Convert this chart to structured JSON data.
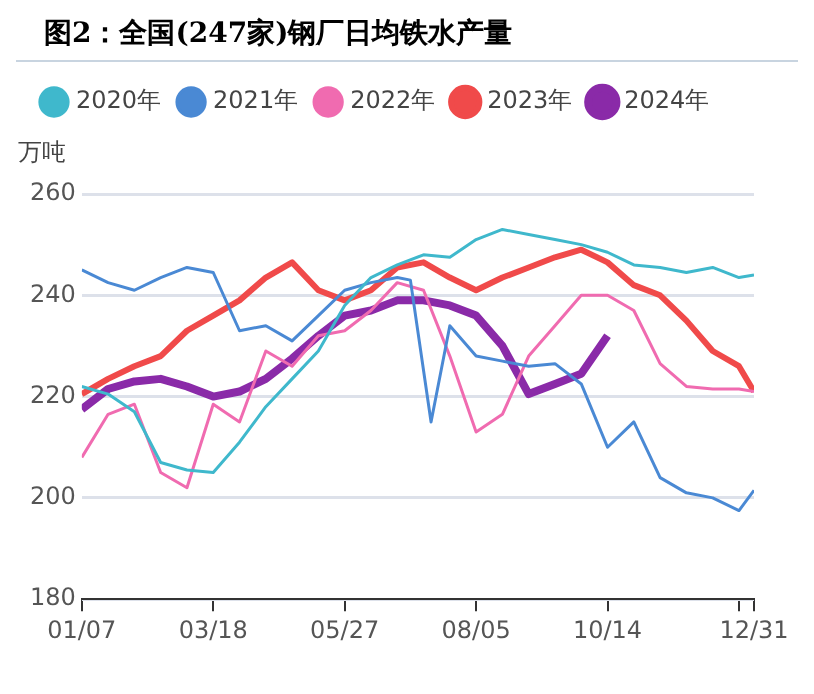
{
  "chart_data": {
    "type": "line",
    "title": "图2：全国(247家)钢厂日均铁水产量",
    "ylabel": "万吨",
    "x": [
      "--01-07",
      "--01-21",
      "--02-04",
      "--02-18",
      "--03-04",
      "--03-18",
      "--04-01",
      "--04-15",
      "--04-29",
      "--05-13",
      "--05-27",
      "--06-10",
      "--06-24",
      "--07-08",
      "--07-22",
      "--08-05",
      "--08-19",
      "--09-02",
      "--09-16",
      "--09-30",
      "--10-14",
      "--10-28",
      "--11-11",
      "--11-25",
      "--12-09",
      "--12-23",
      "--12-31"
    ],
    "series": [
      {
        "name": "2020年",
        "color": "#3fb8cc",
        "values": [
          222,
          220.5,
          217,
          207,
          205.5,
          205,
          211,
          218,
          223.5,
          229,
          238,
          243.5,
          246,
          248,
          247.5,
          251,
          253,
          252,
          251,
          250,
          248.5,
          246,
          245.5,
          244.5,
          245.5,
          243.5,
          244
        ]
      },
      {
        "name": "2021年",
        "color": "#4a89d4",
        "x": [
          "--01-07",
          "--01-21",
          "--02-04",
          "--02-18",
          "--03-04",
          "--03-18",
          "--04-01",
          "--04-15",
          "--04-29",
          "--05-13",
          "--05-27",
          "--06-10",
          "--06-24",
          "--07-01",
          "--07-12",
          "--07-22",
          "--08-05",
          "--08-19",
          "--09-02",
          "--09-16",
          "--09-30",
          "--10-14",
          "--10-28",
          "--11-11",
          "--11-25",
          "--12-09",
          "--12-23",
          "--12-31"
        ],
        "values": [
          245,
          242.5,
          241,
          243.5,
          245.5,
          244.5,
          233,
          234,
          231,
          236,
          241,
          242.5,
          243.5,
          243,
          215,
          234,
          228,
          227,
          226,
          226.5,
          222.5,
          210,
          215,
          204,
          201,
          200,
          197.5,
          201.5
        ]
      },
      {
        "name": "2022年",
        "color": "#f06bb0",
        "values": [
          208,
          216.5,
          218.5,
          205,
          202,
          218.5,
          215,
          229,
          226,
          232,
          233,
          237,
          242.5,
          241,
          228,
          213,
          216.5,
          228,
          234,
          240,
          240,
          237,
          226.5,
          222,
          221.5,
          221.5,
          221
        ]
      },
      {
        "name": "2023年",
        "color": "#f04a4a",
        "values": [
          220.5,
          223.5,
          226,
          228,
          233,
          236,
          239,
          243.5,
          246.5,
          241,
          239,
          241,
          245.5,
          246.5,
          243.5,
          241,
          243.5,
          245.5,
          247.5,
          249,
          246.5,
          242,
          240,
          235,
          229,
          226,
          221
        ]
      },
      {
        "name": "2024年",
        "color": "#8a2aa8",
        "x": [
          "--01-07",
          "--01-21",
          "--02-04",
          "--02-18",
          "--03-04",
          "--03-18",
          "--04-01",
          "--04-15",
          "--04-29",
          "--05-13",
          "--05-27",
          "--06-10",
          "--06-24",
          "--07-08",
          "--07-22",
          "--08-05",
          "--08-19",
          "--09-02",
          "--09-16",
          "--09-30",
          "--10-14"
        ],
        "values": [
          217.5,
          221.5,
          223,
          223.5,
          222,
          220,
          221,
          223.5,
          227.5,
          232,
          236,
          237,
          239,
          239,
          238,
          236,
          230,
          220.5,
          222.5,
          224.5,
          232
        ]
      }
    ],
    "xlim": [
      "--01-07",
      "--12-31"
    ],
    "xticks": [
      {
        "value": "--01-07",
        "label": "01/07"
      },
      {
        "value": "--03-18",
        "label": "03/18"
      },
      {
        "value": "--05-27",
        "label": "05/27"
      },
      {
        "value": "--08-05",
        "label": "08/05"
      },
      {
        "value": "--10-14",
        "label": "10/14"
      },
      {
        "value": "--12-23",
        "label": null
      },
      {
        "value": "--12-31",
        "label": "12/31"
      }
    ],
    "ylim": [
      180,
      260
    ],
    "yticks": [
      180,
      200,
      220,
      240,
      260
    ],
    "grid": "y",
    "legend": "top",
    "marker": "none",
    "line_style": "solid"
  }
}
